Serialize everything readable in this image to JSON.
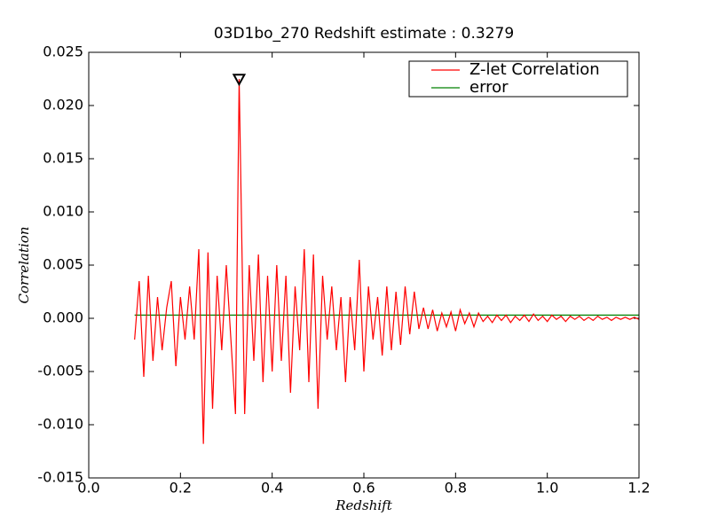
{
  "chart_data": {
    "type": "line",
    "title": "03D1bo_270 Redshift estimate : 0.3279",
    "x_label": "Redshift",
    "y_label": "Correlation",
    "x": [
      0.1,
      0.11,
      0.12,
      0.13,
      0.14,
      0.15,
      0.16,
      0.17,
      0.18,
      0.19,
      0.2,
      0.21,
      0.22,
      0.23,
      0.24,
      0.25,
      0.26,
      0.27,
      0.28,
      0.29,
      0.3,
      0.31,
      0.32,
      0.328,
      0.34,
      0.35,
      0.36,
      0.37,
      0.38,
      0.39,
      0.4,
      0.41,
      0.42,
      0.43,
      0.44,
      0.45,
      0.46,
      0.47,
      0.48,
      0.49,
      0.5,
      0.51,
      0.52,
      0.53,
      0.54,
      0.55,
      0.56,
      0.57,
      0.58,
      0.59,
      0.6,
      0.61,
      0.62,
      0.63,
      0.64,
      0.65,
      0.66,
      0.67,
      0.68,
      0.69,
      0.7,
      0.71,
      0.72,
      0.73,
      0.74,
      0.75,
      0.76,
      0.77,
      0.78,
      0.79,
      0.8,
      0.81,
      0.82,
      0.83,
      0.84,
      0.85,
      0.86,
      0.87,
      0.88,
      0.89,
      0.9,
      0.91,
      0.92,
      0.93,
      0.94,
      0.95,
      0.96,
      0.97,
      0.98,
      0.99,
      1.0,
      1.01,
      1.02,
      1.03,
      1.04,
      1.05,
      1.06,
      1.07,
      1.08,
      1.09,
      1.1,
      1.11,
      1.12,
      1.13,
      1.14,
      1.15,
      1.16,
      1.17,
      1.18,
      1.19,
      1.2
    ],
    "series": [
      {
        "name": "Z-let Correlation",
        "color": "#ff0000",
        "values": [
          -0.002,
          0.0035,
          -0.0055,
          0.004,
          -0.004,
          0.002,
          -0.003,
          0.001,
          0.0035,
          -0.0045,
          0.002,
          -0.002,
          0.003,
          -0.002,
          0.0065,
          -0.0118,
          0.0062,
          -0.0085,
          0.004,
          -0.003,
          0.005,
          -0.002,
          -0.009,
          0.0225,
          -0.009,
          0.005,
          -0.004,
          0.006,
          -0.006,
          0.004,
          -0.005,
          0.005,
          -0.004,
          0.004,
          -0.007,
          0.003,
          -0.003,
          0.0065,
          -0.006,
          0.006,
          -0.0085,
          0.004,
          -0.002,
          0.003,
          -0.003,
          0.002,
          -0.006,
          0.002,
          -0.003,
          0.0055,
          -0.005,
          0.003,
          -0.002,
          0.002,
          -0.0035,
          0.003,
          -0.003,
          0.0025,
          -0.0025,
          0.003,
          -0.0015,
          0.0025,
          -0.001,
          0.001,
          -0.001,
          0.0008,
          -0.0012,
          0.0005,
          -0.0008,
          0.0006,
          -0.0012,
          0.0008,
          -0.0005,
          0.0005,
          -0.0008,
          0.0005,
          -0.0003,
          0.0002,
          -0.0004,
          0.0003,
          -0.0002,
          0.0003,
          -0.0004,
          0.0002,
          -0.0002,
          0.0003,
          -0.0003,
          0.0004,
          -0.0002,
          0.0002,
          -0.0003,
          0.0003,
          -0.0001,
          0.0002,
          -0.0003,
          0.0002,
          -0.0001,
          0.0002,
          -0.0002,
          0.0001,
          -0.0002,
          0.0002,
          -0.0001,
          0.0001,
          -0.0002,
          0.0001,
          -0.0001,
          0.0001,
          -0.0001,
          0.0001,
          -0.0001
        ]
      },
      {
        "name": "error",
        "color": "#008000",
        "values": [
          0.0003,
          0.0003,
          0.0003,
          0.0003,
          0.0003,
          0.0003,
          0.0003,
          0.0003,
          0.0003,
          0.0003,
          0.0003,
          0.0003,
          0.0003,
          0.0003,
          0.0003,
          0.0003,
          0.0003,
          0.0003,
          0.0003,
          0.0003,
          0.0003,
          0.0003,
          0.0003,
          0.0003,
          0.0003,
          0.0003,
          0.0003,
          0.0003,
          0.0003,
          0.0003,
          0.0003,
          0.0003,
          0.0003,
          0.0003,
          0.0003,
          0.0003,
          0.0003,
          0.0003,
          0.0003,
          0.0003,
          0.0003,
          0.0003,
          0.0003,
          0.0003,
          0.0003,
          0.0003,
          0.0003,
          0.0003,
          0.0003,
          0.0003,
          0.0003,
          0.0003,
          0.0003,
          0.0003,
          0.0003,
          0.0003,
          0.0003,
          0.0003,
          0.0003,
          0.0003,
          0.0003,
          0.0003,
          0.0003,
          0.0003,
          0.0003,
          0.0003,
          0.0003,
          0.0003,
          0.0003,
          0.0003,
          0.0003,
          0.0003,
          0.0003,
          0.0003,
          0.0003,
          0.0003,
          0.0003,
          0.0003,
          0.0003,
          0.0003,
          0.0003,
          0.0003,
          0.0003,
          0.0003,
          0.0003,
          0.0003,
          0.0003,
          0.0003,
          0.0003,
          0.0003,
          0.0003,
          0.0003,
          0.0003,
          0.0003,
          0.0003,
          0.0003,
          0.0003,
          0.0003,
          0.0003,
          0.0003,
          0.0003,
          0.0003,
          0.0003,
          0.0003,
          0.0003,
          0.0003,
          0.0003,
          0.0003,
          0.0003,
          0.0003,
          0.0003
        ]
      }
    ],
    "marker": {
      "x": 0.3279,
      "y": 0.0224
    },
    "xlim": [
      0,
      1.2
    ],
    "xticks": [
      {
        "value": 0,
        "label": "0.0"
      },
      0.2,
      0.4,
      0.6,
      0.8,
      {
        "value": 1,
        "label": "1.0"
      },
      1.2
    ],
    "ylim": [
      -0.015,
      0.025
    ],
    "yticks": [
      -0.015,
      {
        "value": -0.01,
        "label": "-0.010"
      },
      -0.005,
      {
        "value": 0,
        "label": "0.000"
      },
      0.005,
      {
        "value": 0.01,
        "label": "0.010"
      },
      0.015,
      {
        "value": 0.02,
        "label": "0.020"
      },
      0.025
    ],
    "grid": false,
    "legend": "upper right"
  }
}
